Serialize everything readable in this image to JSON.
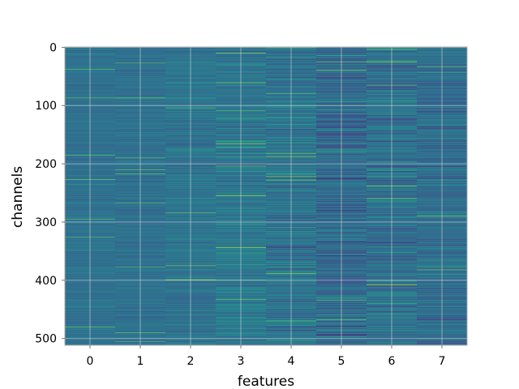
{
  "chart_data": {
    "type": "heatmap",
    "title": "",
    "xlabel": "features",
    "ylabel": "channels",
    "x_ticks": [
      0,
      1,
      2,
      3,
      4,
      5,
      6,
      7
    ],
    "y_ticks": [
      0,
      100,
      200,
      300,
      400,
      500
    ],
    "n_columns": 8,
    "n_rows": 512,
    "xlim": [
      -0.5,
      7.5
    ],
    "ylim": [
      511.5,
      -0.5
    ],
    "y_axis_inverted": true,
    "grid": true,
    "colormap": "viridis",
    "column_spread": [
      0.1,
      0.11,
      0.16,
      0.24,
      0.26,
      0.3,
      0.28,
      0.24
    ],
    "column_base": [
      0.22,
      0.22,
      0.24,
      0.26,
      0.24,
      0.18,
      0.22,
      0.2
    ],
    "colors": {
      "low": "#30306f",
      "mid": "#2f6d8e",
      "high": "#bde64a",
      "grid": "#e6e6e6",
      "frame": "#a8a8a8"
    }
  }
}
